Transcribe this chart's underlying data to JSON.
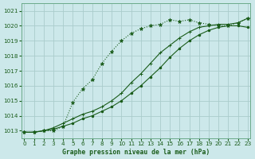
{
  "xlabel": "Graphe pression niveau de la mer (hPa)",
  "ylim": [
    1012.5,
    1021.5
  ],
  "xlim": [
    -0.3,
    23.3
  ],
  "yticks": [
    1013,
    1014,
    1015,
    1016,
    1017,
    1018,
    1019,
    1020,
    1021
  ],
  "xticks": [
    0,
    1,
    2,
    3,
    4,
    5,
    6,
    7,
    8,
    9,
    10,
    11,
    12,
    13,
    14,
    15,
    16,
    17,
    18,
    19,
    20,
    21,
    22,
    23
  ],
  "bg_color": "#cce8ea",
  "grid_color": "#aacccc",
  "line_color": "#1a5c1a",
  "line1_y": [
    1012.9,
    1012.9,
    1013.0,
    1013.0,
    1013.3,
    1014.9,
    1015.8,
    1016.4,
    1017.5,
    1018.3,
    1019.0,
    1019.5,
    1019.8,
    1020.0,
    1020.1,
    1020.4,
    1020.3,
    1020.4,
    1020.2,
    1020.1,
    1020.0,
    1020.0,
    1020.2,
    1020.5
  ],
  "line2_y": [
    1012.9,
    1012.9,
    1013.0,
    1013.2,
    1013.5,
    1013.8,
    1014.1,
    1014.3,
    1014.6,
    1015.0,
    1015.5,
    1016.2,
    1016.8,
    1017.5,
    1018.2,
    1018.7,
    1019.2,
    1019.6,
    1019.9,
    1020.0,
    1020.1,
    1020.1,
    1020.2,
    1020.5
  ],
  "line3_y": [
    1012.9,
    1012.9,
    1013.0,
    1013.1,
    1013.3,
    1013.5,
    1013.8,
    1014.0,
    1014.3,
    1014.6,
    1015.0,
    1015.5,
    1016.0,
    1016.6,
    1017.2,
    1017.9,
    1018.5,
    1019.0,
    1019.4,
    1019.7,
    1019.9,
    1020.0,
    1020.0,
    1019.9
  ]
}
